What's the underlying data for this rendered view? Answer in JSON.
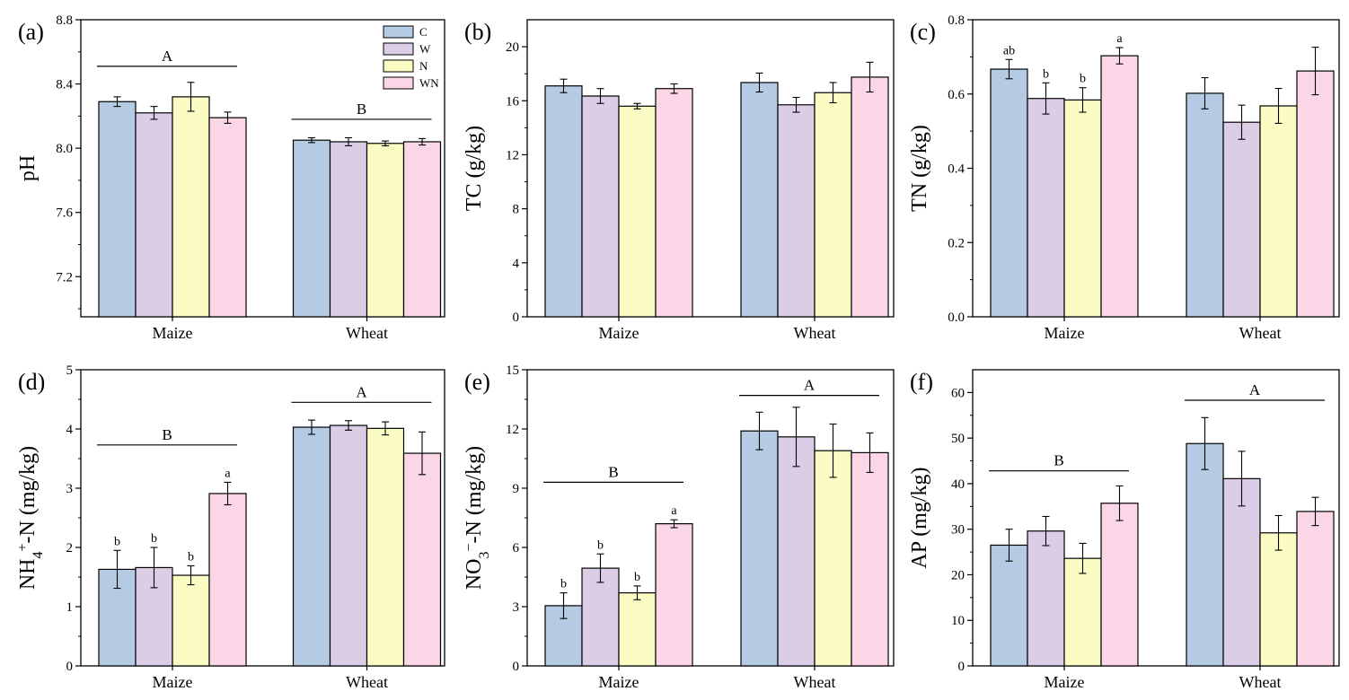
{
  "legend": {
    "entries": [
      {
        "label": "C",
        "color": "#b4cbe3"
      },
      {
        "label": "W",
        "color": "#dccde7"
      },
      {
        "label": "N",
        "color": "#fbfcc4"
      },
      {
        "label": "WN",
        "color": "#fbd6e7"
      }
    ]
  },
  "chart_data": [
    {
      "panel_label": "(a)",
      "type": "bar",
      "ylabel": "pH",
      "ylim": [
        6.95,
        8.8
      ],
      "yticks": [
        "7.2",
        "7.6",
        "8.0",
        "8.4",
        "8.8"
      ],
      "categories": [
        "Maize",
        "Wheat"
      ],
      "series": [
        {
          "name": "C",
          "values": [
            8.29,
            8.05
          ],
          "errors": [
            0.03,
            0.015
          ]
        },
        {
          "name": "W",
          "values": [
            8.22,
            8.04
          ],
          "errors": [
            0.04,
            0.025
          ]
        },
        {
          "name": "N",
          "values": [
            8.32,
            8.03
          ],
          "errors": [
            0.09,
            0.015
          ]
        },
        {
          "name": "WN",
          "values": [
            8.19,
            8.04
          ],
          "errors": [
            0.035,
            0.02
          ]
        }
      ],
      "bar_letters": [
        [
          "",
          "",
          "",
          ""
        ],
        [
          "",
          "",
          "",
          ""
        ]
      ],
      "group_letters": [
        {
          "category": "Maize",
          "letter": "A",
          "y": 8.51
        },
        {
          "category": "Wheat",
          "letter": "B",
          "y": 8.18
        }
      ]
    },
    {
      "panel_label": "(b)",
      "type": "bar",
      "ylabel": "TC (g/kg)",
      "ylim": [
        0,
        22
      ],
      "yticks": [
        "0",
        "4",
        "8",
        "12",
        "16",
        "20"
      ],
      "categories": [
        "Maize",
        "Wheat"
      ],
      "series": [
        {
          "name": "C",
          "values": [
            17.1,
            17.35
          ],
          "errors": [
            0.5,
            0.7
          ]
        },
        {
          "name": "W",
          "values": [
            16.35,
            15.7
          ],
          "errors": [
            0.55,
            0.55
          ]
        },
        {
          "name": "N",
          "values": [
            15.6,
            16.6
          ],
          "errors": [
            0.2,
            0.75
          ]
        },
        {
          "name": "WN",
          "values": [
            16.9,
            17.75
          ],
          "errors": [
            0.35,
            1.1
          ]
        }
      ],
      "bar_letters": [
        [
          "",
          "",
          "",
          ""
        ],
        [
          "",
          "",
          "",
          ""
        ]
      ],
      "group_letters": []
    },
    {
      "panel_label": "(c)",
      "type": "bar",
      "ylabel": "TN (g/kg)",
      "ylim": [
        0,
        0.8
      ],
      "yticks": [
        "0.0",
        "0.2",
        "0.4",
        "0.6",
        "0.8"
      ],
      "categories": [
        "Maize",
        "Wheat"
      ],
      "series": [
        {
          "name": "C",
          "values": [
            0.667,
            0.602
          ],
          "errors": [
            0.026,
            0.042
          ]
        },
        {
          "name": "W",
          "values": [
            0.588,
            0.524
          ],
          "errors": [
            0.042,
            0.046
          ]
        },
        {
          "name": "N",
          "values": [
            0.584,
            0.568
          ],
          "errors": [
            0.033,
            0.047
          ]
        },
        {
          "name": "WN",
          "values": [
            0.703,
            0.662
          ],
          "errors": [
            0.022,
            0.064
          ]
        }
      ],
      "bar_letters": [
        [
          "ab",
          "b",
          "b",
          "a"
        ],
        [
          "",
          "",
          "",
          ""
        ]
      ],
      "group_letters": []
    },
    {
      "panel_label": "(d)",
      "type": "bar",
      "ylabel": "NH4+-N (mg/kg)",
      "ylim": [
        0,
        5
      ],
      "yticks": [
        "0",
        "1",
        "2",
        "3",
        "4",
        "5"
      ],
      "categories": [
        "Maize",
        "Wheat"
      ],
      "series": [
        {
          "name": "C",
          "values": [
            1.63,
            4.03
          ],
          "errors": [
            0.32,
            0.12
          ]
        },
        {
          "name": "W",
          "values": [
            1.66,
            4.06
          ],
          "errors": [
            0.34,
            0.08
          ]
        },
        {
          "name": "N",
          "values": [
            1.53,
            4.01
          ],
          "errors": [
            0.16,
            0.11
          ]
        },
        {
          "name": "WN",
          "values": [
            2.91,
            3.59
          ],
          "errors": [
            0.19,
            0.36
          ]
        }
      ],
      "bar_letters": [
        [
          "b",
          "b",
          "b",
          "a"
        ],
        [
          "",
          "",
          "",
          ""
        ]
      ],
      "group_letters": [
        {
          "category": "Maize",
          "letter": "B",
          "y": 3.73
        },
        {
          "category": "Wheat",
          "letter": "A",
          "y": 4.45
        }
      ]
    },
    {
      "panel_label": "(e)",
      "type": "bar",
      "ylabel": "NO3−-N (mg/kg)",
      "ylim": [
        0,
        15
      ],
      "yticks": [
        "0",
        "3",
        "6",
        "9",
        "12",
        "15"
      ],
      "categories": [
        "Maize",
        "Wheat"
      ],
      "series": [
        {
          "name": "C",
          "values": [
            3.05,
            11.9
          ],
          "errors": [
            0.65,
            0.95
          ]
        },
        {
          "name": "W",
          "values": [
            4.95,
            11.6
          ],
          "errors": [
            0.72,
            1.5
          ]
        },
        {
          "name": "N",
          "values": [
            3.7,
            10.9
          ],
          "errors": [
            0.35,
            1.35
          ]
        },
        {
          "name": "WN",
          "values": [
            7.2,
            10.8
          ],
          "errors": [
            0.2,
            1.0
          ]
        }
      ],
      "bar_letters": [
        [
          "b",
          "b",
          "b",
          "a"
        ],
        [
          "",
          "",
          "",
          ""
        ]
      ],
      "group_letters": [
        {
          "category": "Maize",
          "letter": "B",
          "y": 9.3
        },
        {
          "category": "Wheat",
          "letter": "A",
          "y": 13.7
        }
      ]
    },
    {
      "panel_label": "(f)",
      "type": "bar",
      "ylabel": "AP (mg/kg)",
      "ylim": [
        0,
        65
      ],
      "yticks": [
        "0",
        "10",
        "20",
        "30",
        "40",
        "50",
        "60"
      ],
      "categories": [
        "Maize",
        "Wheat"
      ],
      "series": [
        {
          "name": "C",
          "values": [
            26.5,
            48.8
          ],
          "errors": [
            3.5,
            5.7
          ]
        },
        {
          "name": "W",
          "values": [
            29.6,
            41.1
          ],
          "errors": [
            3.2,
            6.0
          ]
        },
        {
          "name": "N",
          "values": [
            23.6,
            29.2
          ],
          "errors": [
            3.3,
            3.8
          ]
        },
        {
          "name": "WN",
          "values": [
            35.7,
            33.9
          ],
          "errors": [
            3.8,
            3.1
          ]
        }
      ],
      "bar_letters": [
        [
          "",
          "",
          "",
          ""
        ],
        [
          "",
          "",
          "",
          ""
        ]
      ],
      "group_letters": [
        {
          "category": "Maize",
          "letter": "B",
          "y": 42.8
        },
        {
          "category": "Wheat",
          "letter": "A",
          "y": 58.3
        }
      ]
    }
  ]
}
